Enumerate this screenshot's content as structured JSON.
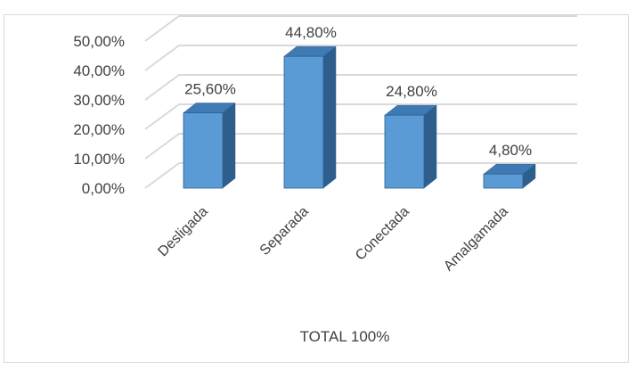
{
  "chart_data": {
    "type": "bar",
    "categories": [
      "Desligada",
      "Separada",
      "Conectada",
      "Amalgamada"
    ],
    "values": [
      25.6,
      44.8,
      24.8,
      4.8
    ],
    "data_labels": [
      "25,60%",
      "44,80%",
      "24,80%",
      "4,80%"
    ],
    "xlabel": "TOTAL 100%",
    "ylabel": "",
    "title": "",
    "ylim": [
      0,
      50
    ],
    "yticks": [
      0,
      10,
      20,
      30,
      40,
      50
    ],
    "ytick_labels": [
      "0,00%",
      "10,00%",
      "20,00%",
      "30,00%",
      "40,00%",
      "50,00%"
    ],
    "style": "3d-column",
    "grid": true,
    "legend": "none",
    "colors": {
      "bar_front": "#5b9bd5",
      "bar_side": "#2e5f8c",
      "bar_top": "#3f7ab5",
      "grid": "#d9d9d9",
      "text": "#404040"
    }
  }
}
